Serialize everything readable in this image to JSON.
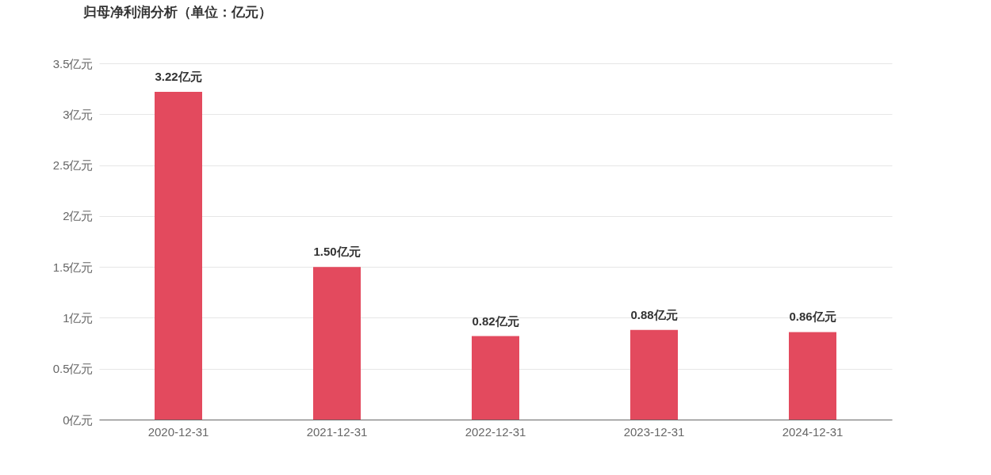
{
  "chart_data": {
    "type": "bar",
    "title": "归母净利润分析（单位：亿元）",
    "categories": [
      "2020-12-31",
      "2021-12-31",
      "2022-12-31",
      "2023-12-31",
      "2024-12-31"
    ],
    "values": [
      3.22,
      1.5,
      0.82,
      0.88,
      0.86
    ],
    "value_labels": [
      "3.22亿元",
      "1.50亿元",
      "0.82亿元",
      "0.88亿元",
      "0.86亿元"
    ],
    "color": "#e34a5e",
    "ylim": [
      0,
      3.5
    ],
    "yticks": [
      {
        "value": 0,
        "label": "0亿元"
      },
      {
        "value": 0.5,
        "label": "0.5亿元"
      },
      {
        "value": 1,
        "label": "1亿元"
      },
      {
        "value": 1.5,
        "label": "1.5亿元"
      },
      {
        "value": 2,
        "label": "2亿元"
      },
      {
        "value": 2.5,
        "label": "2.5亿元"
      },
      {
        "value": 3,
        "label": "3亿元"
      },
      {
        "value": 3.5,
        "label": "3.5亿元"
      }
    ],
    "grid": "y"
  }
}
